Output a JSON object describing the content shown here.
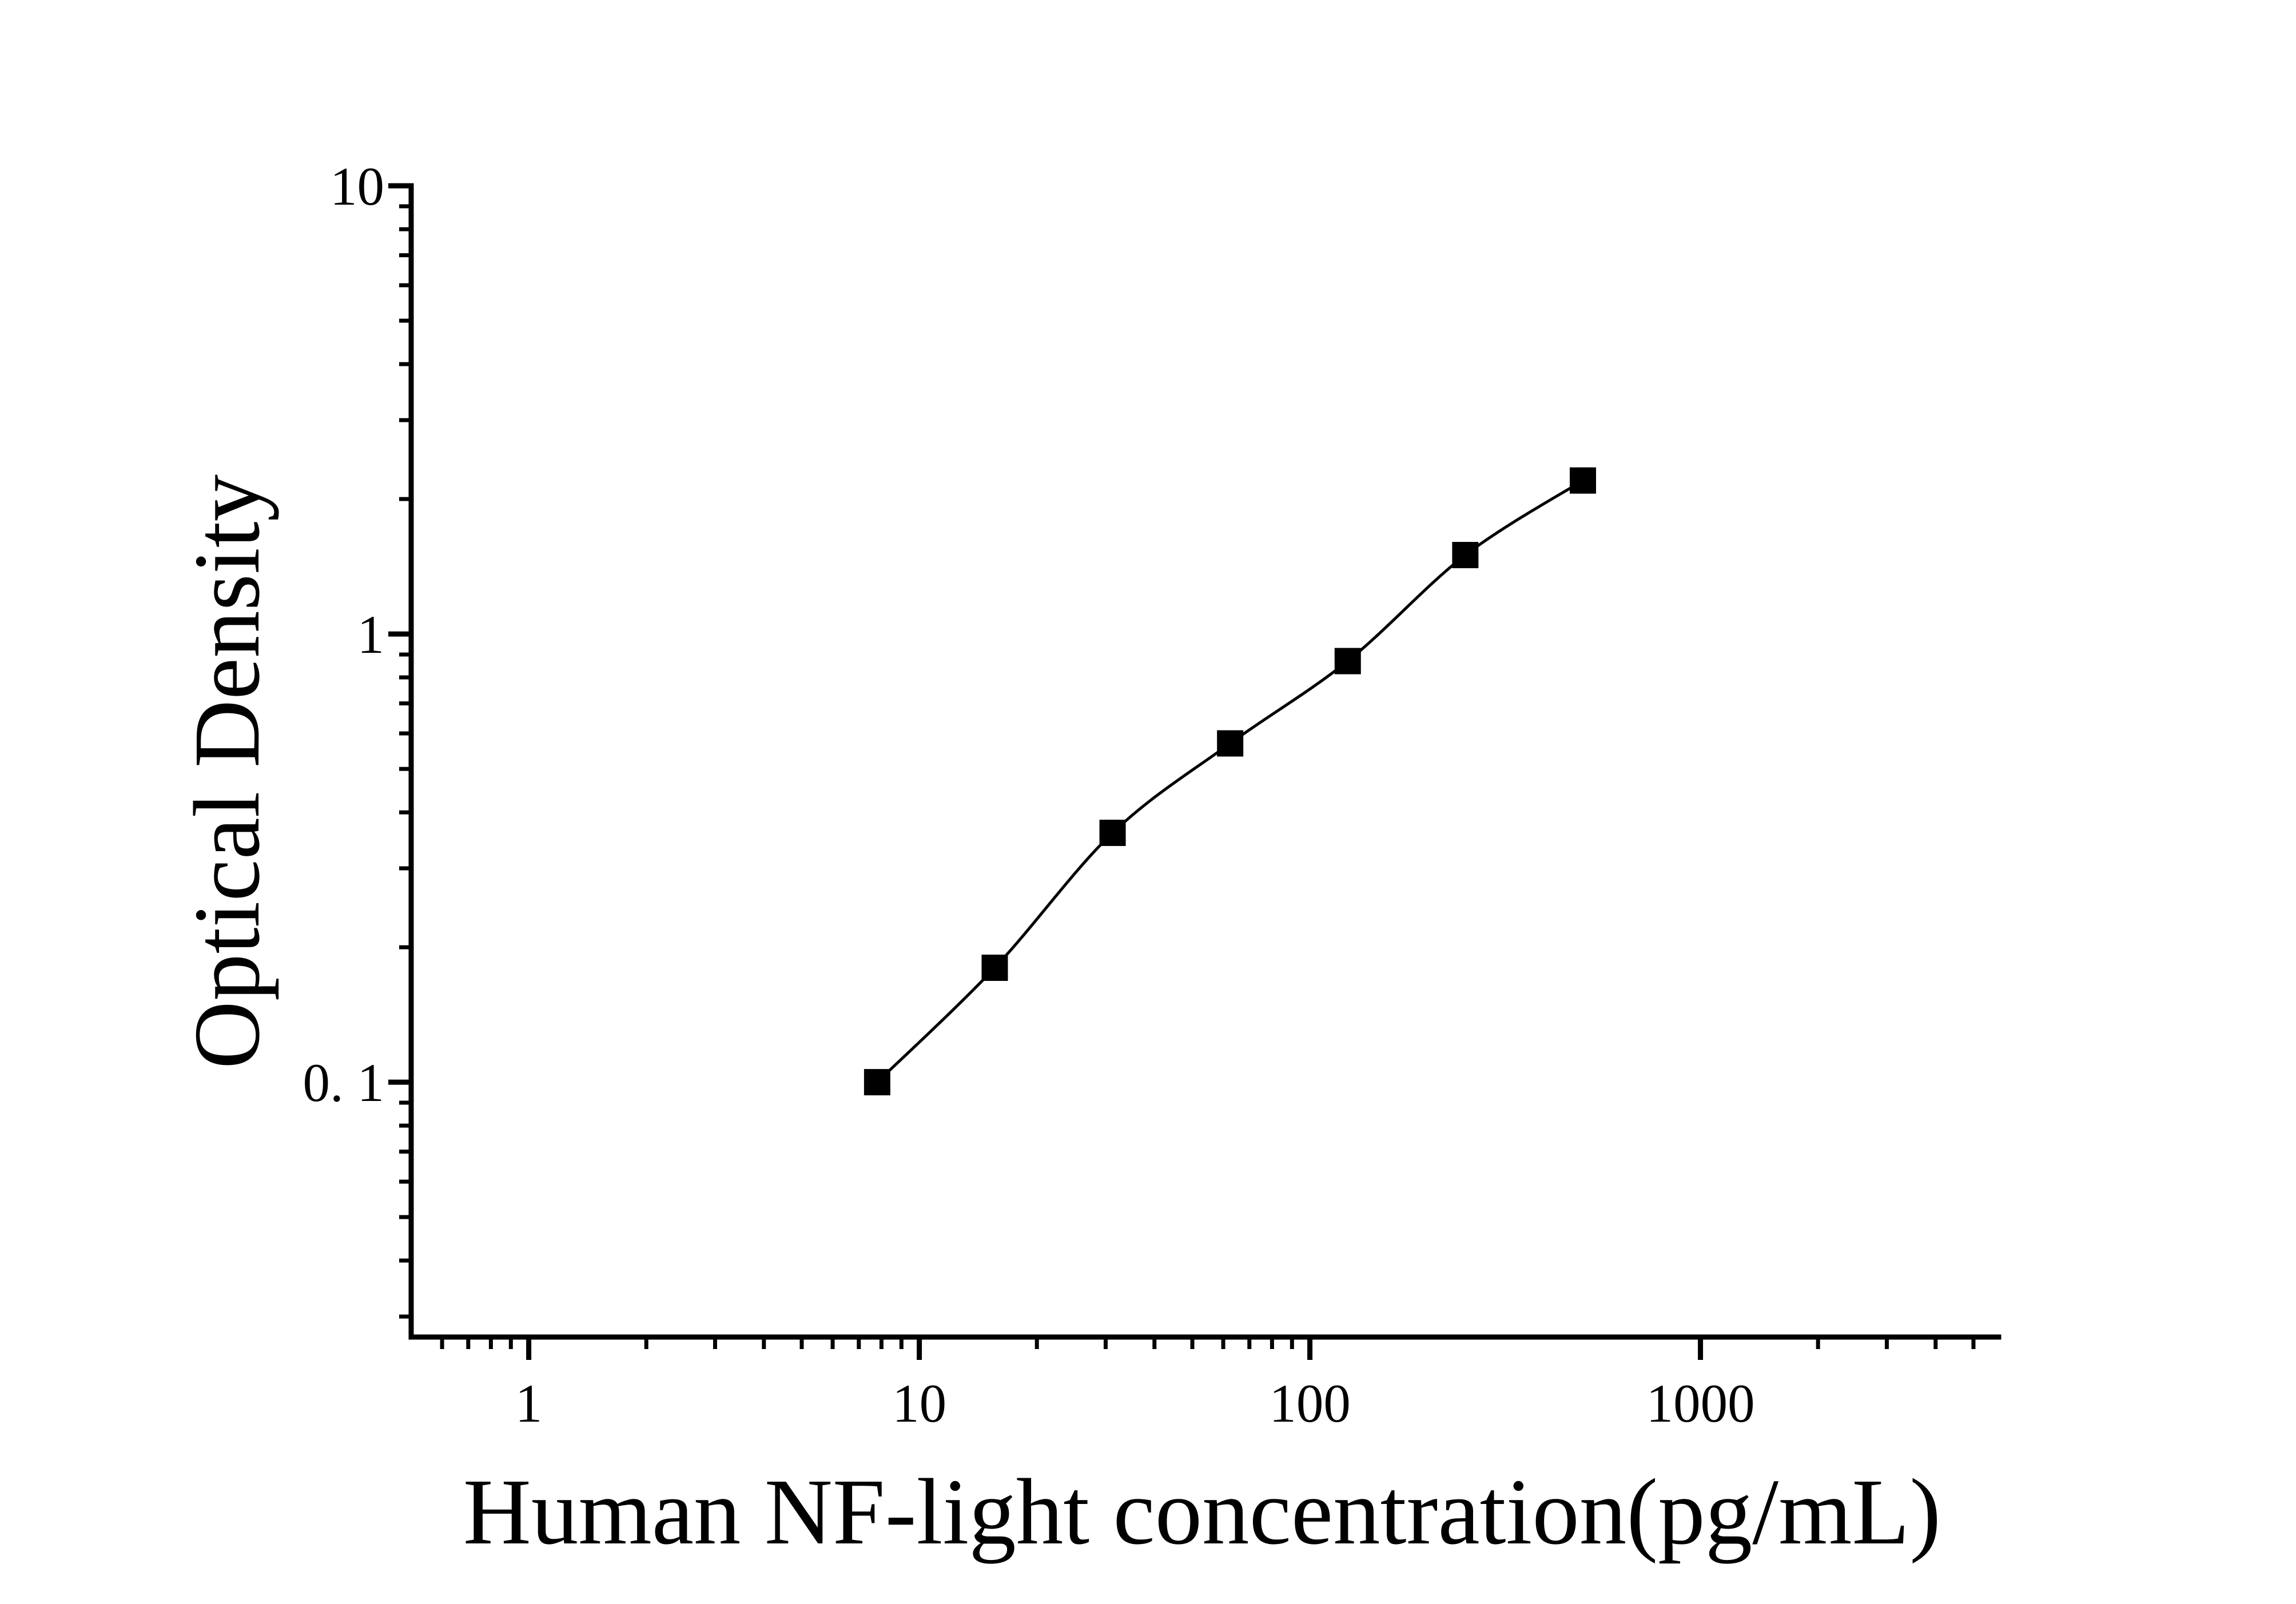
{
  "figure": {
    "background": "#ffffff",
    "ink_color": "#000000"
  },
  "chart_data": {
    "type": "line",
    "title": "",
    "xlabel": "Human NF-light concentration(pg/mL)",
    "ylabel": "Optical Density",
    "x_scale": "log",
    "y_scale": "log",
    "xlim": [
      0.5,
      5800
    ],
    "ylim": [
      0.027,
      10
    ],
    "grid": false,
    "legend": false,
    "axis_box": "left-bottom-only",
    "tick_direction": "out",
    "x_major_ticks": [
      1,
      10,
      100,
      1000
    ],
    "x_major_tick_labels": [
      "1",
      "10",
      "100",
      "1000"
    ],
    "x_minor_ticks": [
      0.6,
      0.7,
      0.8,
      0.9,
      2,
      3,
      4,
      5,
      6,
      7,
      8,
      9,
      20,
      30,
      40,
      50,
      60,
      70,
      80,
      90,
      2000,
      3000,
      4000,
      5000
    ],
    "y_major_ticks": [
      0.1,
      1,
      10
    ],
    "y_major_tick_labels": [
      "0. 1",
      "1",
      "10"
    ],
    "y_minor_ticks": [
      0.03,
      0.04,
      0.05,
      0.06,
      0.07,
      0.08,
      0.09,
      0.2,
      0.3,
      0.4,
      0.5,
      0.6,
      0.7,
      0.8,
      0.9,
      2,
      3,
      4,
      5,
      6,
      7,
      8,
      9
    ],
    "series": [
      {
        "marker": "filled-square",
        "line_style": "solid",
        "color": "#000000",
        "x": [
          7.8,
          15.6,
          31.25,
          62.5,
          125,
          250,
          500
        ],
        "y": [
          0.1,
          0.18,
          0.36,
          0.57,
          0.87,
          1.5,
          2.2
        ]
      }
    ]
  }
}
